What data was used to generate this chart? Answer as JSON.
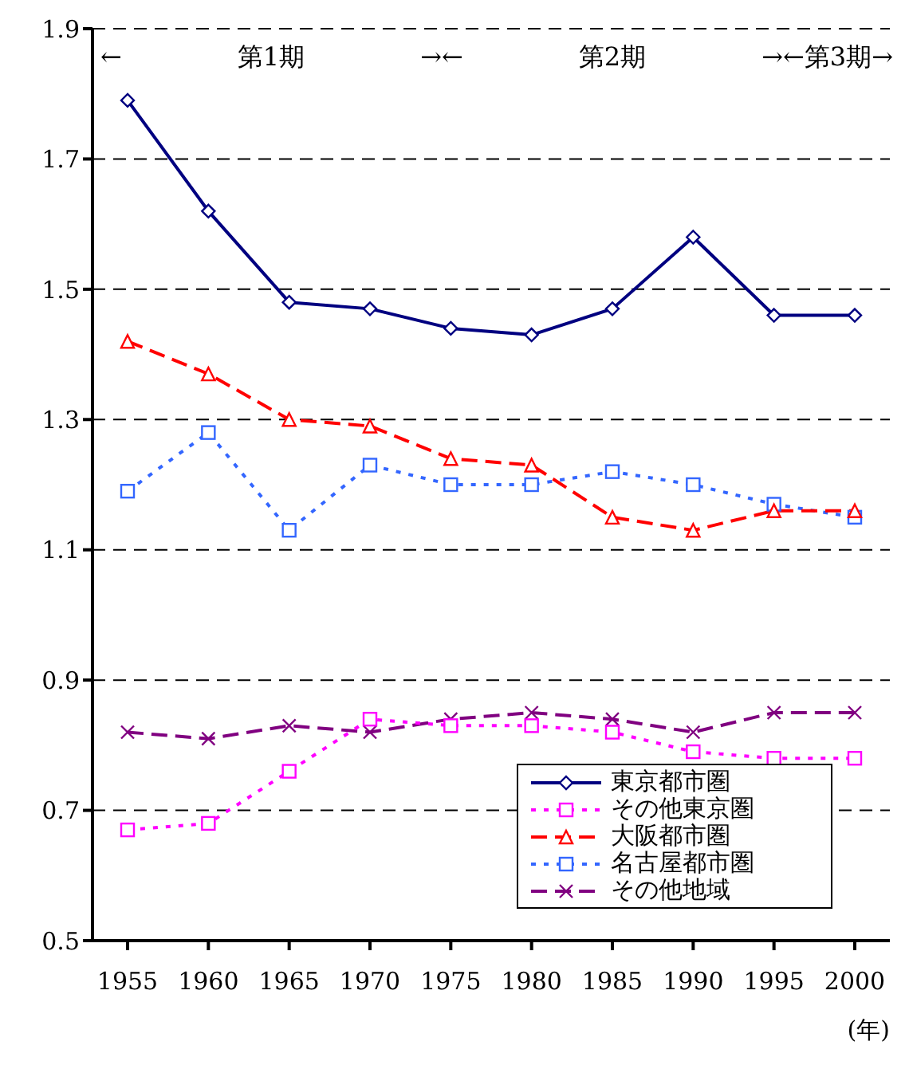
{
  "chart_data": {
    "type": "line",
    "xlabel": "(年)",
    "categories": [
      "1955",
      "1960",
      "1965",
      "1970",
      "1975",
      "1980",
      "1985",
      "1990",
      "1995",
      "2000"
    ],
    "series": [
      {
        "name": "東京都市圏",
        "color": "#000080",
        "marker": "diamond",
        "line_style": "solid",
        "values": [
          1.79,
          1.62,
          1.48,
          1.47,
          1.44,
          1.43,
          1.47,
          1.58,
          1.46,
          1.46
        ]
      },
      {
        "name": "その他東京圏",
        "color": "#ff00ff",
        "marker": "square",
        "line_style": "dotted",
        "values": [
          0.67,
          0.68,
          0.76,
          0.84,
          0.83,
          0.83,
          0.82,
          0.79,
          0.78,
          0.78
        ]
      },
      {
        "name": "大阪都市圏",
        "color": "#ff0000",
        "marker": "triangle",
        "line_style": "dashed",
        "values": [
          1.42,
          1.37,
          1.3,
          1.29,
          1.24,
          1.23,
          1.15,
          1.13,
          1.16,
          1.16
        ]
      },
      {
        "name": "名古屋都市圏",
        "color": "#3366ff",
        "marker": "square",
        "line_style": "dotted",
        "values": [
          1.19,
          1.28,
          1.13,
          1.23,
          1.2,
          1.2,
          1.22,
          1.2,
          1.17,
          1.15
        ]
      },
      {
        "name": "その他地域",
        "color": "#800080",
        "marker": "cross",
        "line_style": "dashed",
        "values": [
          0.82,
          0.81,
          0.83,
          0.82,
          0.84,
          0.85,
          0.84,
          0.82,
          0.85,
          0.85
        ]
      }
    ],
    "ylim": [
      0.5,
      1.9
    ],
    "yticks": [
      0.5,
      0.7,
      0.9,
      1.1,
      1.3,
      1.5,
      1.7,
      1.9
    ],
    "grid": "y",
    "legend": "bottom right",
    "annotations": [
      "←",
      "第1期",
      "→←",
      "第2期",
      "→←第3期→"
    ]
  }
}
